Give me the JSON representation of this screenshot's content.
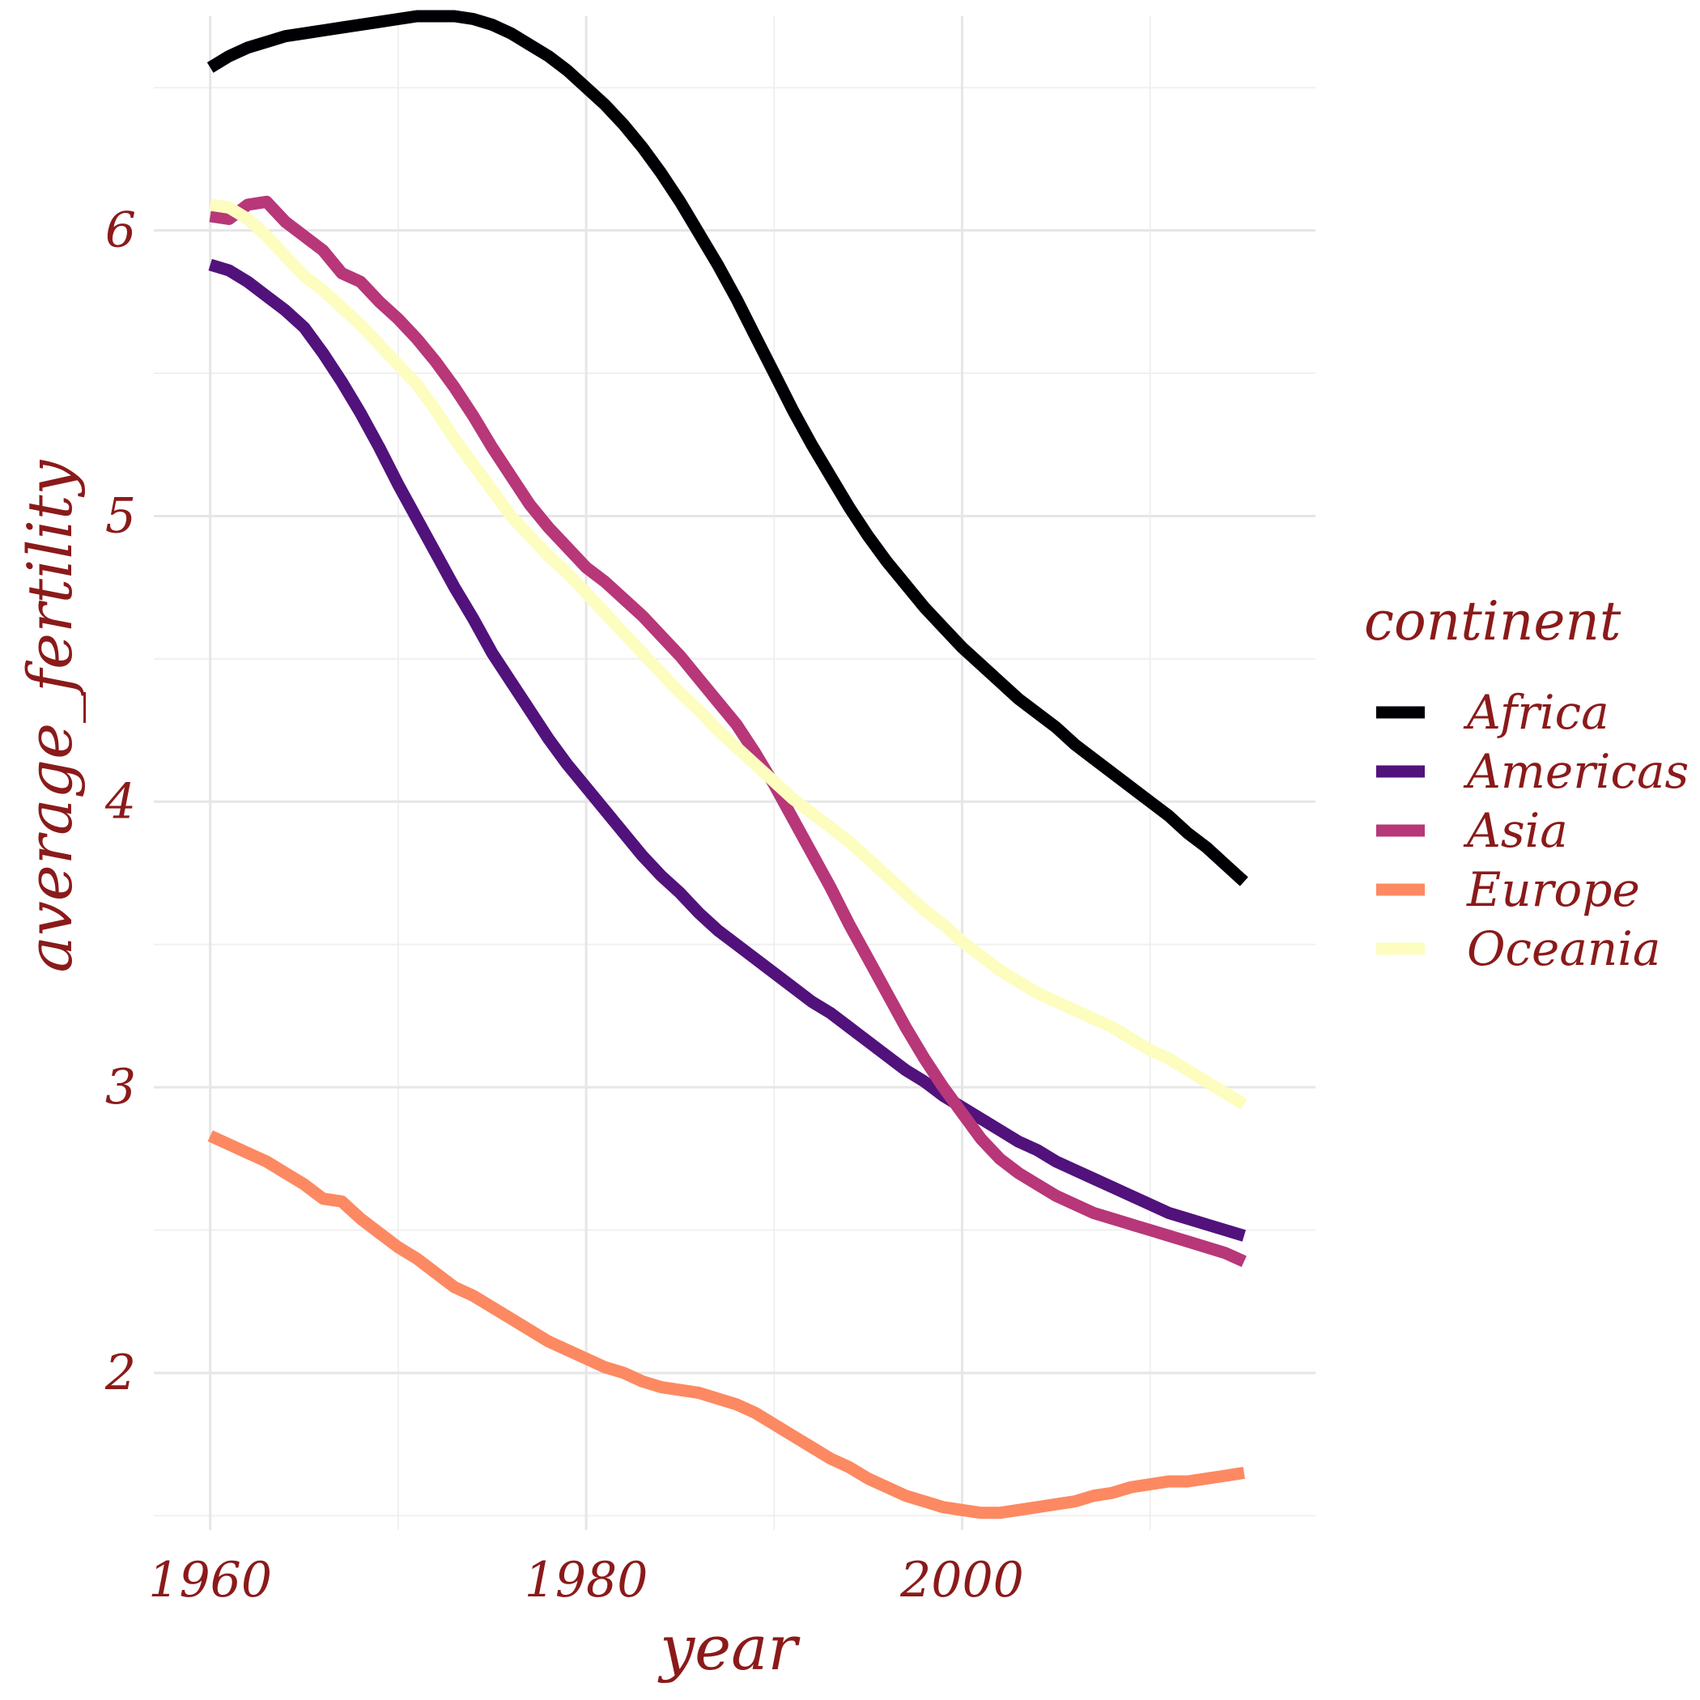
{
  "chart_data": {
    "type": "line",
    "title": "",
    "xlabel": "year",
    "ylabel": "average_fertility",
    "xlim": [
      1957,
      2018.8
    ],
    "ylim": [
      1.45,
      6.75
    ],
    "x_ticks": [
      1960,
      1980,
      2000
    ],
    "y_ticks": [
      2,
      3,
      4,
      5,
      6
    ],
    "grid": true,
    "legend": {
      "title": "continent",
      "position": "right"
    },
    "x": [
      1960,
      1961,
      1962,
      1963,
      1964,
      1965,
      1966,
      1967,
      1968,
      1969,
      1970,
      1971,
      1972,
      1973,
      1974,
      1975,
      1976,
      1977,
      1978,
      1979,
      1980,
      1981,
      1982,
      1983,
      1984,
      1985,
      1986,
      1987,
      1988,
      1989,
      1990,
      1991,
      1992,
      1993,
      1994,
      1995,
      1996,
      1997,
      1998,
      1999,
      2000,
      2001,
      2002,
      2003,
      2004,
      2005,
      2006,
      2007,
      2008,
      2009,
      2010,
      2011,
      2012,
      2013,
      2014,
      2015
    ],
    "series": [
      {
        "name": "Africa",
        "color": "#000004",
        "values": [
          6.57,
          6.61,
          6.64,
          6.66,
          6.68,
          6.69,
          6.7,
          6.71,
          6.72,
          6.73,
          6.74,
          6.75,
          6.75,
          6.75,
          6.74,
          6.72,
          6.69,
          6.65,
          6.61,
          6.56,
          6.5,
          6.44,
          6.37,
          6.29,
          6.2,
          6.1,
          5.99,
          5.88,
          5.76,
          5.63,
          5.5,
          5.37,
          5.25,
          5.14,
          5.03,
          4.93,
          4.84,
          4.76,
          4.68,
          4.61,
          4.54,
          4.48,
          4.42,
          4.36,
          4.31,
          4.26,
          4.2,
          4.15,
          4.1,
          4.05,
          4.0,
          3.95,
          3.89,
          3.84,
          3.78,
          3.72
        ]
      },
      {
        "name": "Americas",
        "color": "#51127c",
        "values": [
          5.88,
          5.86,
          5.82,
          5.77,
          5.72,
          5.66,
          5.57,
          5.47,
          5.36,
          5.24,
          5.11,
          4.99,
          4.87,
          4.75,
          4.64,
          4.52,
          4.42,
          4.32,
          4.22,
          4.13,
          4.05,
          3.97,
          3.89,
          3.81,
          3.74,
          3.68,
          3.61,
          3.55,
          3.5,
          3.45,
          3.4,
          3.35,
          3.3,
          3.26,
          3.21,
          3.16,
          3.11,
          3.06,
          3.02,
          2.97,
          2.93,
          2.89,
          2.85,
          2.81,
          2.78,
          2.74,
          2.71,
          2.68,
          2.65,
          2.62,
          2.59,
          2.56,
          2.54,
          2.52,
          2.5,
          2.48
        ]
      },
      {
        "name": "Asia",
        "color": "#b73779",
        "values": [
          6.05,
          6.04,
          6.09,
          6.1,
          6.03,
          5.98,
          5.93,
          5.85,
          5.82,
          5.75,
          5.69,
          5.62,
          5.54,
          5.45,
          5.35,
          5.24,
          5.14,
          5.04,
          4.96,
          4.89,
          4.82,
          4.77,
          4.71,
          4.65,
          4.58,
          4.51,
          4.43,
          4.35,
          4.27,
          4.17,
          4.06,
          3.94,
          3.82,
          3.7,
          3.57,
          3.45,
          3.33,
          3.21,
          3.1,
          3.0,
          2.91,
          2.82,
          2.75,
          2.7,
          2.66,
          2.62,
          2.59,
          2.56,
          2.54,
          2.52,
          2.5,
          2.48,
          2.46,
          2.44,
          2.42,
          2.39
        ]
      },
      {
        "name": "Europe",
        "color": "#fc8961",
        "values": [
          2.83,
          2.8,
          2.77,
          2.74,
          2.7,
          2.66,
          2.61,
          2.6,
          2.54,
          2.49,
          2.44,
          2.4,
          2.35,
          2.3,
          2.27,
          2.23,
          2.19,
          2.15,
          2.11,
          2.08,
          2.05,
          2.02,
          2.0,
          1.97,
          1.95,
          1.94,
          1.93,
          1.91,
          1.89,
          1.86,
          1.82,
          1.78,
          1.74,
          1.7,
          1.67,
          1.63,
          1.6,
          1.57,
          1.55,
          1.53,
          1.52,
          1.51,
          1.51,
          1.52,
          1.53,
          1.54,
          1.55,
          1.57,
          1.58,
          1.6,
          1.61,
          1.62,
          1.62,
          1.63,
          1.64,
          1.65
        ]
      },
      {
        "name": "Oceania",
        "color": "#fcfdbf",
        "values": [
          6.09,
          6.08,
          6.04,
          5.98,
          5.91,
          5.84,
          5.79,
          5.73,
          5.67,
          5.6,
          5.53,
          5.46,
          5.37,
          5.27,
          5.18,
          5.09,
          5.0,
          4.93,
          4.86,
          4.8,
          4.73,
          4.66,
          4.59,
          4.52,
          4.45,
          4.38,
          4.32,
          4.25,
          4.19,
          4.13,
          4.07,
          4.01,
          3.96,
          3.91,
          3.86,
          3.8,
          3.74,
          3.68,
          3.62,
          3.57,
          3.51,
          3.46,
          3.41,
          3.37,
          3.33,
          3.3,
          3.27,
          3.24,
          3.21,
          3.17,
          3.13,
          3.1,
          3.06,
          3.02,
          2.98,
          2.94
        ]
      }
    ]
  }
}
